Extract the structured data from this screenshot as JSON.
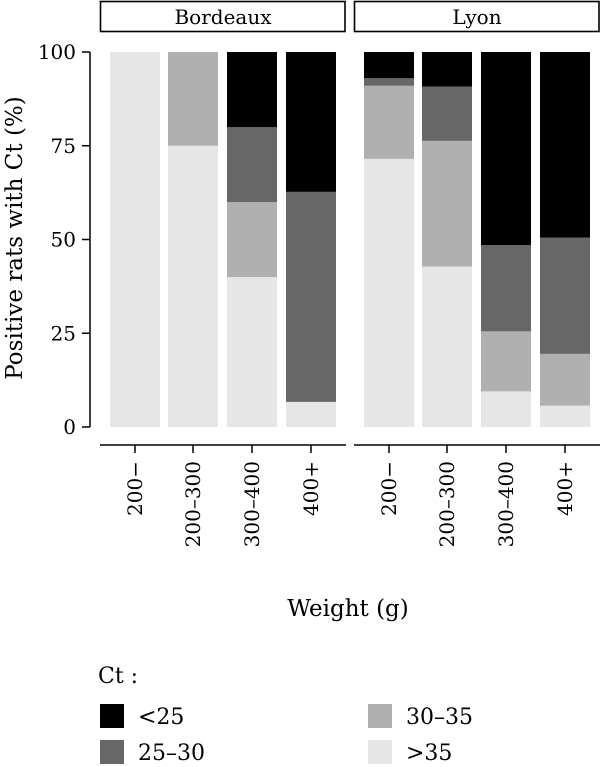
{
  "chart_data": {
    "type": "bar",
    "stacked": true,
    "ylabel": "Positive rats with Ct (%)",
    "xlabel": "Weight (g)",
    "ylim": [
      0,
      100
    ],
    "yticks": [
      "0",
      "25",
      "50",
      "75",
      "100"
    ],
    "categories": [
      "200−",
      "200–300",
      "300–400",
      "400+"
    ],
    "panels": [
      {
        "name": "Bordeaux",
        "stacks": [
          {
            ">35": 100,
            "30–35": 0,
            "25–30": 0,
            "<25": 0
          },
          {
            ">35": 75,
            "30–35": 25,
            "25–30": 0,
            "<25": 0
          },
          {
            ">35": 40,
            "30–35": 20,
            "25–30": 20,
            "<25": 20
          },
          {
            ">35": 6.7,
            "30–35": 0,
            "25–30": 56,
            "<25": 37.3
          }
        ]
      },
      {
        "name": "Lyon",
        "stacks": [
          {
            ">35": 71.5,
            "30–35": 19.5,
            "25–30": 2,
            "<25": 7
          },
          {
            ">35": 42.8,
            "30–35": 33.5,
            "25–30": 14.5,
            "<25": 9.2
          },
          {
            ">35": 9.5,
            "30–35": 16,
            "25–30": 23,
            "<25": 51.5
          },
          {
            ">35": 5.7,
            "30–35": 13.8,
            "25–30": 31,
            "<25": 49.5
          }
        ]
      }
    ],
    "stack_order": [
      ">35",
      "30–35",
      "25–30",
      "<25"
    ],
    "legend": {
      "title": "Ct :",
      "position": "bottom",
      "entries": [
        {
          "label": "<25",
          "color": "#000000"
        },
        {
          "label": "30–35",
          "color": "#b0b0b0"
        },
        {
          "label": "25–30",
          "color": "#676767"
        },
        {
          "label": ">35",
          "color": "#e6e6e6"
        }
      ]
    },
    "grid": false
  }
}
